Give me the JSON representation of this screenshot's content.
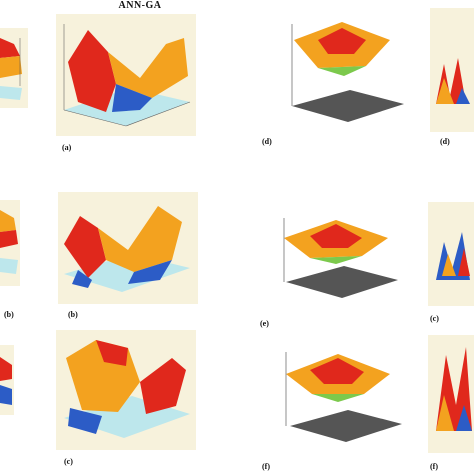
{
  "header": {
    "title": "ANN-GA"
  },
  "captions": {
    "r1c1": "(a)",
    "r1c3": "(d)",
    "r1c4": "(d)",
    "r2c0": "(b)",
    "r2c1": "(b)",
    "r2c3": "(e)",
    "r2c4": "(c)",
    "r3c1": "(c)",
    "r3c3": "(f)",
    "r3c4": "(f)"
  },
  "colors": {
    "surface_hot": "#e0281c",
    "surface_warm": "#f3a21f",
    "surface_mid": "#f6e545",
    "surface_cool": "#2c5cc6",
    "floor": "#bde7ec",
    "frame_bg": "#f7f2dc"
  }
}
